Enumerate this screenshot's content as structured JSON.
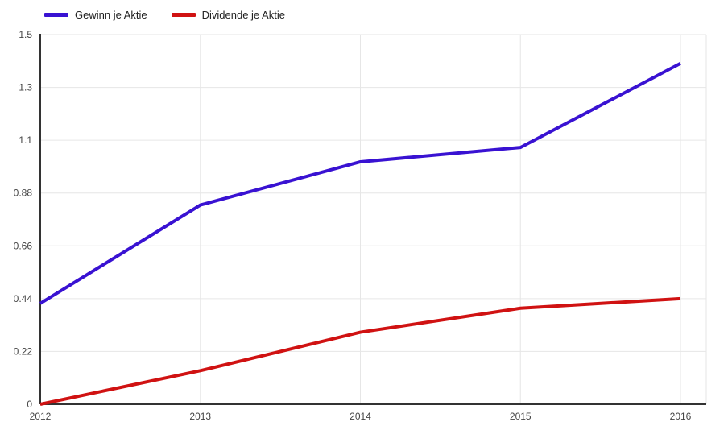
{
  "chart_data": {
    "type": "line",
    "x": [
      2012,
      2013,
      2014,
      2015,
      2016
    ],
    "x_tick_labels": [
      "2012",
      "2013",
      "2014",
      "2015",
      "2016"
    ],
    "series": [
      {
        "name": "Gewinn je Aktie",
        "color": "#3912d2",
        "values": [
          0.42,
          0.83,
          1.01,
          1.07,
          1.42
        ]
      },
      {
        "name": "Dividende je Aktie",
        "color": "#d01212",
        "values": [
          0.0,
          0.14,
          0.3,
          0.4,
          0.44
        ]
      }
    ],
    "title": "",
    "xlabel": "",
    "ylabel": "",
    "ylim": [
      0,
      1.54
    ],
    "y_ticks": [
      0,
      0.22,
      0.44,
      0.66,
      0.88,
      1.1,
      1.32,
      1.54
    ],
    "y_tick_labels": [
      "0",
      "0.22",
      "0.44",
      "0.66",
      "0.88",
      "1.1",
      "1.3",
      "1.5"
    ],
    "grid": true,
    "legend_position": "top",
    "colors": {
      "gridline": "#e6e6e6",
      "axis_line": "#333333",
      "tick_label": "#444444",
      "legend_text": "#222222",
      "background": "#ffffff"
    }
  }
}
